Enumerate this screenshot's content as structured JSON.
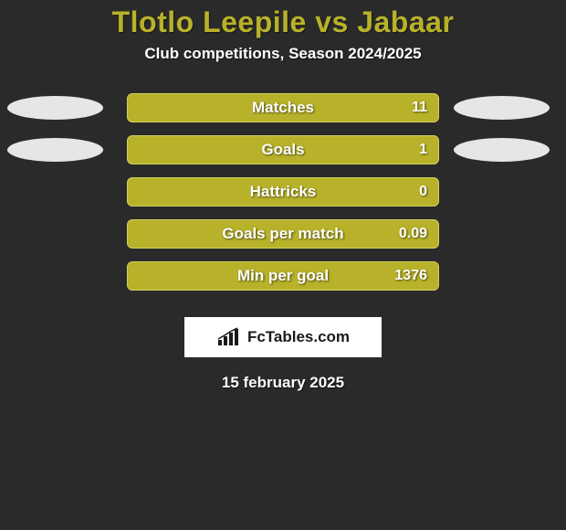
{
  "title": "Tlotlo Leepile vs Jabaar",
  "subtitle": "Club competitions, Season 2024/2025",
  "date": "15 february 2025",
  "logo_text": "FcTables.com",
  "colors": {
    "accent": "#b8b22a",
    "background": "#2a2a2a",
    "bar_border": "#d4d060",
    "text_light": "#ffffff",
    "ellipse": "#e6e6e6",
    "logo_bg": "#ffffff",
    "logo_text": "#1a1a1a"
  },
  "stats": [
    {
      "label": "Matches",
      "value": "11",
      "show_ellipses": true
    },
    {
      "label": "Goals",
      "value": "1",
      "show_ellipses": true
    },
    {
      "label": "Hattricks",
      "value": "0",
      "show_ellipses": false
    },
    {
      "label": "Goals per match",
      "value": "0.09",
      "show_ellipses": false
    },
    {
      "label": "Min per goal",
      "value": "1376",
      "show_ellipses": false
    }
  ]
}
